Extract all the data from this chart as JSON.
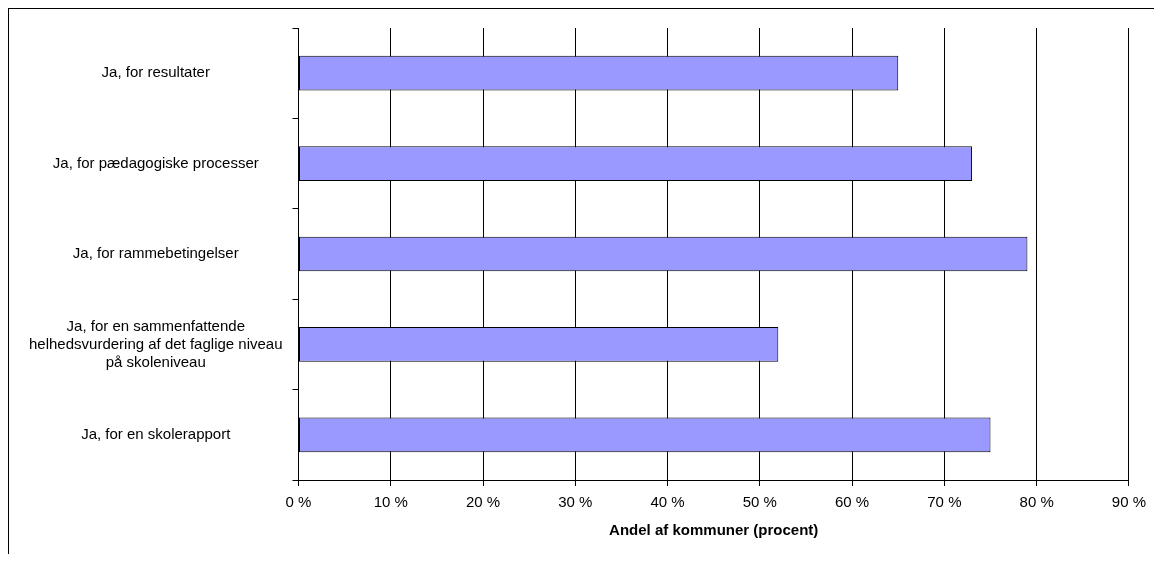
{
  "chart_data": {
    "type": "bar",
    "orientation": "horizontal",
    "xlabel": "Andel af kommuner (procent)",
    "categories": [
      "Ja, for resultater",
      "Ja, for pædagogiske processer",
      "Ja, for rammebetingelser",
      "Ja, for en sammenfattende helhedsvurdering af det faglige niveau på skoleniveau",
      "Ja, for en skolerapport"
    ],
    "values": [
      65,
      73,
      79,
      52,
      75
    ],
    "color": "#9999ff",
    "xlim": [
      0,
      90
    ],
    "xticks": [
      {
        "value": 0,
        "label": "0 %"
      },
      {
        "value": 10,
        "label": "10 %"
      },
      {
        "value": 20,
        "label": "20 %"
      },
      {
        "value": 30,
        "label": "30 %"
      },
      {
        "value": 40,
        "label": "40 %"
      },
      {
        "value": 50,
        "label": "50 %"
      },
      {
        "value": 60,
        "label": "60 %"
      },
      {
        "value": 70,
        "label": "70 %"
      },
      {
        "value": 80,
        "label": "80 %"
      },
      {
        "value": 90,
        "label": "90 %"
      }
    ],
    "grid": "x",
    "legend": false
  }
}
